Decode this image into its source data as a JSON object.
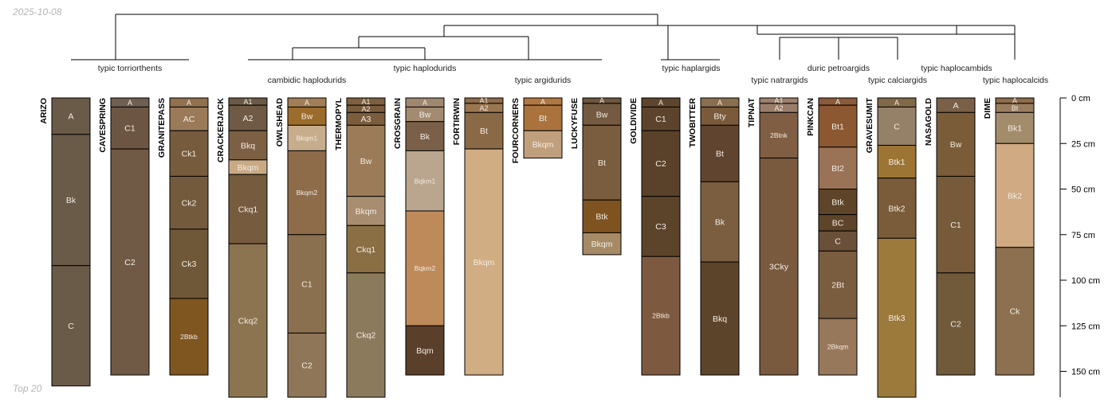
{
  "header": {
    "date": "2025-10-08"
  },
  "footer": {
    "caption": "Top 20"
  },
  "depth_axis": {
    "unit": "cm",
    "ticks": [
      0,
      25,
      50,
      75,
      100,
      125,
      150
    ]
  },
  "subgroups": [
    "typic torriorthents",
    "cambidic haplodurids",
    "typic haplodurids",
    "typic argidurids",
    "typic haplargids",
    "typic natrargids",
    "duric petroargids",
    "typic calciargids",
    "typic haplocambids",
    "typic haplocalcids"
  ],
  "profiles": [
    {
      "name": "ARIZO",
      "horizons": [
        {
          "name": "A",
          "top": 0,
          "bottom": 20,
          "color": "#6a5a48"
        },
        {
          "name": "Bk",
          "top": 20,
          "bottom": 92,
          "color": "#6a5a48"
        },
        {
          "name": "C",
          "top": 92,
          "bottom": 158,
          "color": "#6a5a48"
        }
      ]
    },
    {
      "name": "CAVESPRING",
      "horizons": [
        {
          "name": "A",
          "top": 0,
          "bottom": 5,
          "color": "#6e5f52"
        },
        {
          "name": "C1",
          "top": 5,
          "bottom": 28,
          "color": "#6c5643"
        },
        {
          "name": "C2",
          "top": 28,
          "bottom": 152,
          "color": "#705a45"
        }
      ]
    },
    {
      "name": "GRANITEPASS",
      "horizons": [
        {
          "name": "A",
          "top": 0,
          "bottom": 5,
          "color": "#91704e"
        },
        {
          "name": "AC",
          "top": 5,
          "bottom": 18,
          "color": "#9a7a58"
        },
        {
          "name": "Ck1",
          "top": 18,
          "bottom": 43,
          "color": "#775b3d"
        },
        {
          "name": "Ck2",
          "top": 43,
          "bottom": 72,
          "color": "#735a3c"
        },
        {
          "name": "Ck3",
          "top": 72,
          "bottom": 110,
          "color": "#6f5838"
        },
        {
          "name": "2Btkb",
          "top": 110,
          "bottom": 152,
          "color": "#7f5520"
        }
      ]
    },
    {
      "name": "CRACKERJACK",
      "horizons": [
        {
          "name": "A1",
          "top": 0,
          "bottom": 4,
          "color": "#6c5a46"
        },
        {
          "name": "A2",
          "top": 4,
          "bottom": 18,
          "color": "#6e5a45"
        },
        {
          "name": "Bkq",
          "top": 18,
          "bottom": 34,
          "color": "#7d6043"
        },
        {
          "name": "Bkqm",
          "top": 34,
          "bottom": 42,
          "color": "#c9aa84"
        },
        {
          "name": "Ckq1",
          "top": 42,
          "bottom": 80,
          "color": "#765b3e"
        },
        {
          "name": "Ckq2",
          "top": 80,
          "bottom": 170,
          "color": "#8d7450"
        }
      ]
    },
    {
      "name": "OWLSHEAD",
      "horizons": [
        {
          "name": "A",
          "top": 0,
          "bottom": 5,
          "color": "#a27e56"
        },
        {
          "name": "Bw",
          "top": 5,
          "bottom": 15,
          "color": "#9c6c2c"
        },
        {
          "name": "Bkqm1",
          "top": 15,
          "bottom": 29,
          "color": "#c7ad8c"
        },
        {
          "name": "Bkqm2",
          "top": 29,
          "bottom": 75,
          "color": "#8e6c4a"
        },
        {
          "name": "C1",
          "top": 75,
          "bottom": 129,
          "color": "#8b7050"
        },
        {
          "name": "C2",
          "top": 129,
          "bottom": 170,
          "color": "#8f7658"
        }
      ]
    },
    {
      "name": "THERMOPYL",
      "horizons": [
        {
          "name": "A1",
          "top": 0,
          "bottom": 4,
          "color": "#7d6040"
        },
        {
          "name": "A2",
          "top": 4,
          "bottom": 8,
          "color": "#7a5c3c"
        },
        {
          "name": "A3",
          "top": 8,
          "bottom": 15,
          "color": "#7b5d3e"
        },
        {
          "name": "Bw",
          "top": 15,
          "bottom": 54,
          "color": "#9c7c58"
        },
        {
          "name": "Bkqm",
          "top": 54,
          "bottom": 70,
          "color": "#a98d70"
        },
        {
          "name": "Ckq1",
          "top": 70,
          "bottom": 96,
          "color": "#8a6e44"
        },
        {
          "name": "Ckq2",
          "top": 96,
          "bottom": 170,
          "color": "#8c7a5c"
        }
      ]
    },
    {
      "name": "CROSGRAIN",
      "horizons": [
        {
          "name": "A",
          "top": 0,
          "bottom": 5,
          "color": "#a08770"
        },
        {
          "name": "Bw",
          "top": 5,
          "bottom": 13,
          "color": "#a38b72"
        },
        {
          "name": "Bk",
          "top": 13,
          "bottom": 29,
          "color": "#7a6048"
        },
        {
          "name": "Bqkm1",
          "top": 29,
          "bottom": 62,
          "color": "#baa68e"
        },
        {
          "name": "Bqkm2",
          "top": 62,
          "bottom": 125,
          "color": "#be8a5a"
        },
        {
          "name": "Bqm",
          "top": 125,
          "bottom": 152,
          "color": "#5a3f2b"
        }
      ]
    },
    {
      "name": "FORTIRWIN",
      "horizons": [
        {
          "name": "A1",
          "top": 0,
          "bottom": 3,
          "color": "#8e6c48"
        },
        {
          "name": "A2",
          "top": 3,
          "bottom": 8,
          "color": "#9a7650"
        },
        {
          "name": "Bt",
          "top": 8,
          "bottom": 28,
          "color": "#8a6a46"
        },
        {
          "name": "Bkqm",
          "top": 28,
          "bottom": 152,
          "color": "#d1ad83"
        }
      ]
    },
    {
      "name": "FOURCORNERS",
      "horizons": [
        {
          "name": "A",
          "top": 0,
          "bottom": 4,
          "color": "#b07840"
        },
        {
          "name": "Bt",
          "top": 4,
          "bottom": 18,
          "color": "#aa733d"
        },
        {
          "name": "Bkqm",
          "top": 18,
          "bottom": 33,
          "color": "#c0a07c"
        }
      ]
    },
    {
      "name": "LUCKYFUSE",
      "horizons": [
        {
          "name": "A",
          "top": 0,
          "bottom": 3,
          "color": "#6e563e"
        },
        {
          "name": "Bw",
          "top": 3,
          "bottom": 15,
          "color": "#735a40"
        },
        {
          "name": "Bt",
          "top": 15,
          "bottom": 56,
          "color": "#7a5c3e"
        },
        {
          "name": "Btk",
          "top": 56,
          "bottom": 74,
          "color": "#7e5320"
        },
        {
          "name": "Bkqm",
          "top": 74,
          "bottom": 86,
          "color": "#a68a66"
        }
      ]
    },
    {
      "name": "GOLDIVIDE",
      "horizons": [
        {
          "name": "A",
          "top": 0,
          "bottom": 5,
          "color": "#5e452e"
        },
        {
          "name": "C1",
          "top": 5,
          "bottom": 18,
          "color": "#5c442c"
        },
        {
          "name": "C2",
          "top": 18,
          "bottom": 54,
          "color": "#5a422a"
        },
        {
          "name": "C3",
          "top": 54,
          "bottom": 87,
          "color": "#5c442b"
        },
        {
          "name": "2Btkb",
          "top": 87,
          "bottom": 152,
          "color": "#7d5a3f"
        }
      ]
    },
    {
      "name": "TWOBITTER",
      "horizons": [
        {
          "name": "A",
          "top": 0,
          "bottom": 5,
          "color": "#8a6e50"
        },
        {
          "name": "Bty",
          "top": 5,
          "bottom": 15,
          "color": "#7a5a3a"
        },
        {
          "name": "Bt",
          "top": 15,
          "bottom": 46,
          "color": "#604430"
        },
        {
          "name": "Bk",
          "top": 46,
          "bottom": 90,
          "color": "#7b5e40"
        },
        {
          "name": "Bkq",
          "top": 90,
          "bottom": 152,
          "color": "#5c442a"
        }
      ]
    },
    {
      "name": "TIPNAT",
      "horizons": [
        {
          "name": "A1",
          "top": 0,
          "bottom": 3,
          "color": "#9c806c"
        },
        {
          "name": "A2",
          "top": 3,
          "bottom": 8,
          "color": "#9a7e6a"
        },
        {
          "name": "2Btnk",
          "top": 8,
          "bottom": 33,
          "color": "#7f5e44"
        },
        {
          "name": "3Cky",
          "top": 33,
          "bottom": 152,
          "color": "#7a5a3e"
        }
      ]
    },
    {
      "name": "PINKCAN",
      "horizons": [
        {
          "name": "A",
          "top": 0,
          "bottom": 4,
          "color": "#8a5a3a"
        },
        {
          "name": "Bt1",
          "top": 4,
          "bottom": 27,
          "color": "#8c5832"
        },
        {
          "name": "Bt2",
          "top": 27,
          "bottom": 50,
          "color": "#9a7256"
        },
        {
          "name": "Btk",
          "top": 50,
          "bottom": 64,
          "color": "#5e4428"
        },
        {
          "name": "BC",
          "top": 64,
          "bottom": 73,
          "color": "#5e4428"
        },
        {
          "name": "C",
          "top": 73,
          "bottom": 84,
          "color": "#6a5038"
        },
        {
          "name": "2Bt",
          "top": 84,
          "bottom": 121,
          "color": "#7a5c3e"
        },
        {
          "name": "2Bkqm",
          "top": 121,
          "bottom": 152,
          "color": "#98785a"
        }
      ]
    },
    {
      "name": "GRAVESUMIT",
      "horizons": [
        {
          "name": "A",
          "top": 0,
          "bottom": 5,
          "color": "#806848"
        },
        {
          "name": "C",
          "top": 5,
          "bottom": 26,
          "color": "#958068"
        },
        {
          "name": "Btk1",
          "top": 26,
          "bottom": 44,
          "color": "#9c7434"
        },
        {
          "name": "Btk2",
          "top": 44,
          "bottom": 77,
          "color": "#7a5c3a"
        },
        {
          "name": "Btk3",
          "top": 77,
          "bottom": 170,
          "color": "#9c7a3c"
        }
      ]
    },
    {
      "name": "NASAGOLD",
      "horizons": [
        {
          "name": "A",
          "top": 0,
          "bottom": 8,
          "color": "#7a6048"
        },
        {
          "name": "Bw",
          "top": 8,
          "bottom": 43,
          "color": "#7a5c38"
        },
        {
          "name": "C1",
          "top": 43,
          "bottom": 96,
          "color": "#765a3a"
        },
        {
          "name": "C2",
          "top": 96,
          "bottom": 152,
          "color": "#705a3a"
        }
      ]
    },
    {
      "name": "DIME",
      "horizons": [
        {
          "name": "A",
          "top": 0,
          "bottom": 3,
          "color": "#8e6c4c"
        },
        {
          "name": "Bt",
          "top": 3,
          "bottom": 8,
          "color": "#9a7c5e"
        },
        {
          "name": "Bk1",
          "top": 8,
          "bottom": 25,
          "color": "#a38c6c"
        },
        {
          "name": "Bk2",
          "top": 25,
          "bottom": 82,
          "color": "#cfaa82"
        },
        {
          "name": "Ck",
          "top": 82,
          "bottom": 152,
          "color": "#8c7050"
        }
      ]
    }
  ]
}
